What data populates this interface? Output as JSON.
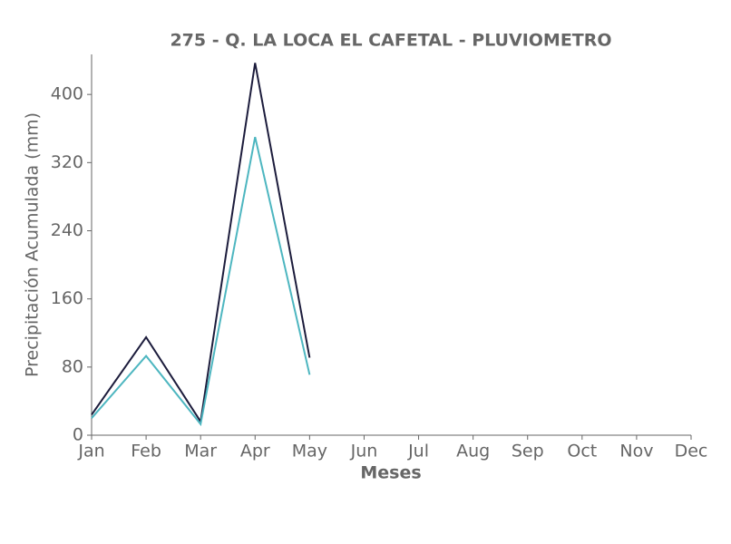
{
  "chart_data": {
    "type": "line",
    "title": "275 - Q. LA LOCA EL CAFETAL - PLUVIOMETRO",
    "x_label": "Meses",
    "y_label": "Precipitación Acumulada (mm)",
    "categories": [
      "Jan",
      "Feb",
      "Mar",
      "Apr",
      "May",
      "Jun",
      "Jul",
      "Aug",
      "Sep",
      "Oct",
      "Nov",
      "Dec"
    ],
    "series": [
      {
        "color": "#1c1c3c",
        "values": [
          24,
          115,
          16,
          437,
          91,
          null,
          null,
          null,
          null,
          null,
          null,
          null
        ]
      },
      {
        "color": "#4db6c0",
        "values": [
          20,
          93,
          13,
          350,
          71,
          null,
          null,
          null,
          null,
          null,
          null,
          null
        ]
      }
    ],
    "ylim": [
      0,
      447
    ],
    "yticks": [
      0,
      80,
      160,
      240,
      320,
      400
    ],
    "grid": false
  }
}
